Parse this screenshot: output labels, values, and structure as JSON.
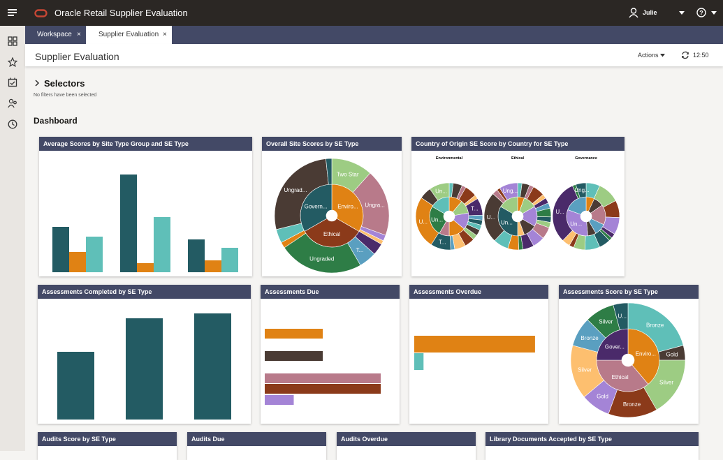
{
  "app": {
    "title": "Oracle Retail Supplier Evaluation",
    "user": "Julie",
    "brand_color": "#c74634"
  },
  "tabs": [
    {
      "label": "Workspace",
      "active": false
    },
    {
      "label": "Supplier Evaluation",
      "active": true
    }
  ],
  "page": {
    "title": "Supplier Evaluation",
    "actions_label": "Actions",
    "refresh_time": "12:50"
  },
  "selectors": {
    "title": "Selectors",
    "status": "No filters have been selected"
  },
  "dashboard": {
    "title": "Dashboard"
  },
  "rail_icons": [
    "dashboard-icon",
    "star-icon",
    "tasks-icon",
    "users-icon",
    "history-icon"
  ],
  "colors": {
    "header": "#434966",
    "teal_dark": "#235b63",
    "orange": "#e08214",
    "teal_light": "#5fbfb8"
  },
  "cards": {
    "c1": "Average Scores by Site Type Group and SE Type",
    "c2": "Overall Site Scores by SE Type",
    "c3": "Country of Origin SE Score by Country for SE Type",
    "c4": "Assessments Completed by SE Type",
    "c5": "Assessments Due",
    "c6": "Assessments Overdue",
    "c7": "Assessments Score by SE Type",
    "c8": "Audits Score by SE Type",
    "c9": "Audits Due",
    "c10": "Audits Overdue",
    "c11": "Library Documents Accepted by SE Type"
  },
  "chart_data": [
    {
      "id": "avg_scores",
      "type": "bar",
      "groups": 3,
      "series": [
        {
          "color": "#235b63",
          "values": [
            65,
            140,
            47
          ]
        },
        {
          "color": "#e08214",
          "values": [
            29,
            13,
            17
          ]
        },
        {
          "color": "#5fbfb8",
          "values": [
            51,
            79,
            35
          ]
        }
      ]
    },
    {
      "id": "overall_site",
      "type": "sunburst",
      "inner": [
        {
          "label": "Enviro...",
          "value": 120,
          "color": "#e08214"
        },
        {
          "label": "Ethical",
          "value": 120,
          "color": "#8b3a1a"
        },
        {
          "label": "Govern...",
          "value": 120,
          "color": "#235b63"
        }
      ],
      "outer": [
        {
          "label": "Two Star",
          "value": 42,
          "color": "#9dcc83"
        },
        {
          "label": "Ungra...",
          "value": 68,
          "color": "#b87a8a"
        },
        {
          "label": "",
          "value": 6,
          "color": "#a484d6"
        },
        {
          "label": "",
          "value": 4,
          "color": "#fdbf6f"
        },
        {
          "label": "",
          "value": 12,
          "color": "#4a2a6a"
        },
        {
          "label": "T...",
          "value": 18,
          "color": "#5a9fc0"
        },
        {
          "label": "Ungraded",
          "value": 86,
          "color": "#2e7d46"
        },
        {
          "label": "",
          "value": 6,
          "color": "#e08214"
        },
        {
          "label": "",
          "value": 14,
          "color": "#5fbfb8"
        },
        {
          "label": "Ungrad...",
          "value": 98,
          "color": "#4a3b34"
        },
        {
          "label": "",
          "value": 6,
          "color": "#235b63"
        }
      ]
    },
    {
      "id": "country_env",
      "type": "sunburst",
      "title": "Environmental",
      "inner": [
        {
          "label": "",
          "value": 40,
          "color": "#e08214"
        },
        {
          "label": "",
          "value": 40,
          "color": "#9dcc83"
        },
        {
          "label": "",
          "value": 50,
          "color": "#a484d6"
        },
        {
          "label": "",
          "value": 50,
          "color": "#e08214"
        },
        {
          "label": "",
          "value": 30,
          "color": "#b87a8a"
        },
        {
          "label": "Un...",
          "value": 90,
          "color": "#2e7d46"
        },
        {
          "label": "",
          "value": 60,
          "color": "#5fbfb8"
        }
      ],
      "outer": [
        {
          "label": "",
          "value": 8,
          "color": "#5fbfb8"
        },
        {
          "label": "",
          "value": 18,
          "color": "#4a3b34"
        },
        {
          "label": "",
          "value": 8,
          "color": "#b87a8a"
        },
        {
          "label": "",
          "value": 24,
          "color": "#8b3a1a"
        },
        {
          "label": "",
          "value": 8,
          "color": "#fdbf6f"
        },
        {
          "label": "T...",
          "value": 34,
          "color": "#4a2a6a"
        },
        {
          "label": "",
          "value": 10,
          "color": "#5a9fc0"
        },
        {
          "label": "",
          "value": 10,
          "color": "#235b63"
        },
        {
          "label": "",
          "value": 10,
          "color": "#5fbfb8"
        },
        {
          "label": "",
          "value": 12,
          "color": "#4a3b34"
        },
        {
          "label": "",
          "value": 10,
          "color": "#9dcc83"
        },
        {
          "label": "",
          "value": 20,
          "color": "#8b3a1a"
        },
        {
          "label": "",
          "value": 22,
          "color": "#fdbf6f"
        },
        {
          "label": "",
          "value": 8,
          "color": "#5a9fc0"
        },
        {
          "label": "T...",
          "value": 40,
          "color": "#235b63"
        },
        {
          "label": "U...",
          "value": 104,
          "color": "#e08214"
        },
        {
          "label": "",
          "value": 24,
          "color": "#4a3b34"
        },
        {
          "label": "Un...",
          "value": 40,
          "color": "#9dcc83"
        }
      ]
    },
    {
      "id": "country_eth",
      "type": "sunburst",
      "title": "Ethical",
      "inner": [
        {
          "label": "",
          "value": 20,
          "color": "#e08214"
        },
        {
          "label": "",
          "value": 40,
          "color": "#9dcc83"
        },
        {
          "label": "",
          "value": 60,
          "color": "#a484d6"
        },
        {
          "label": "",
          "value": 40,
          "color": "#4a3b34"
        },
        {
          "label": "",
          "value": 20,
          "color": "#fdbf6f"
        },
        {
          "label": "Un...",
          "value": 120,
          "color": "#235b63"
        },
        {
          "label": "",
          "value": 60,
          "color": "#9dcc83"
        }
      ],
      "outer": [
        {
          "label": "",
          "value": 8,
          "color": "#5fbfb8"
        },
        {
          "label": "",
          "value": 14,
          "color": "#4a3b34"
        },
        {
          "label": "",
          "value": 8,
          "color": "#b87a8a"
        },
        {
          "label": "",
          "value": 22,
          "color": "#8b3a1a"
        },
        {
          "label": "",
          "value": 8,
          "color": "#fdbf6f"
        },
        {
          "label": "",
          "value": 10,
          "color": "#4a2a6a"
        },
        {
          "label": "",
          "value": 10,
          "color": "#5a9fc0"
        },
        {
          "label": "",
          "value": 16,
          "color": "#2e7d46"
        },
        {
          "label": "",
          "value": 10,
          "color": "#235b63"
        },
        {
          "label": "",
          "value": 10,
          "color": "#9dcc83"
        },
        {
          "label": "",
          "value": 22,
          "color": "#b87a8a"
        },
        {
          "label": "",
          "value": 22,
          "color": "#a484d6"
        },
        {
          "label": "",
          "value": 20,
          "color": "#4a2a6a"
        },
        {
          "label": "",
          "value": 8,
          "color": "#2e7d46"
        },
        {
          "label": "",
          "value": 20,
          "color": "#e08214"
        },
        {
          "label": "",
          "value": 28,
          "color": "#5fbfb8"
        },
        {
          "label": "U...",
          "value": 94,
          "color": "#4a3b34"
        },
        {
          "label": "",
          "value": 10,
          "color": "#b87a8a"
        },
        {
          "label": "",
          "value": 6,
          "color": "#8b3a1a"
        },
        {
          "label": "Ung...",
          "value": 34,
          "color": "#a484d6"
        }
      ]
    },
    {
      "id": "country_gov",
      "type": "sunburst",
      "title": "Governance",
      "inner": [
        {
          "label": "",
          "value": 25,
          "color": "#e08214"
        },
        {
          "label": "",
          "value": 30,
          "color": "#4a3b34"
        },
        {
          "label": "",
          "value": 60,
          "color": "#b87a8a"
        },
        {
          "label": "",
          "value": 35,
          "color": "#5a9fc0"
        },
        {
          "label": "",
          "value": 25,
          "color": "#4a3b34"
        },
        {
          "label": "Un...",
          "value": 115,
          "color": "#a484d6"
        },
        {
          "label": "",
          "value": 70,
          "color": "#5a9fc0"
        }
      ],
      "outer": [
        {
          "label": "",
          "value": 24,
          "color": "#5fbfb8"
        },
        {
          "label": "",
          "value": 38,
          "color": "#9dcc83"
        },
        {
          "label": "",
          "value": 30,
          "color": "#8b3a1a"
        },
        {
          "label": "",
          "value": 30,
          "color": "#a484d6"
        },
        {
          "label": "",
          "value": 8,
          "color": "#4a2a6a"
        },
        {
          "label": "",
          "value": 6,
          "color": "#2e7d46"
        },
        {
          "label": "",
          "value": 20,
          "color": "#235b63"
        },
        {
          "label": "",
          "value": 26,
          "color": "#5fbfb8"
        },
        {
          "label": "",
          "value": 20,
          "color": "#9dcc83"
        },
        {
          "label": "",
          "value": 8,
          "color": "#8b3a1a"
        },
        {
          "label": "",
          "value": 14,
          "color": "#fdbf6f"
        },
        {
          "label": "U...",
          "value": 112,
          "color": "#4a2a6a"
        },
        {
          "label": "",
          "value": 6,
          "color": "#2e7d46"
        },
        {
          "label": "Ung...",
          "value": 18,
          "color": "#235b63"
        }
      ]
    },
    {
      "id": "assess_completed",
      "type": "bar",
      "series": [
        {
          "color": "#235b63",
          "values": [
            97,
            145,
            152
          ]
        }
      ]
    },
    {
      "id": "assess_due",
      "type": "hbar",
      "values": [
        2,
        2,
        4,
        4,
        1
      ],
      "colors": [
        "#e08214",
        "#4a3b34",
        "#b87a8a",
        "#8b3a1a",
        "#a484d6"
      ]
    },
    {
      "id": "assess_overdue",
      "type": "hbar",
      "values": [
        13,
        1
      ],
      "colors": [
        "#e08214",
        "#5fbfb8"
      ]
    },
    {
      "id": "assess_score",
      "type": "sunburst",
      "inner": [
        {
          "label": "Enviro...",
          "value": 140,
          "color": "#e08214"
        },
        {
          "label": "Ethical",
          "value": 130,
          "color": "#b87a8a"
        },
        {
          "label": "Gover...",
          "value": 90,
          "color": "#4a2a6a"
        }
      ],
      "outer": [
        {
          "label": "Bronze",
          "value": 75,
          "color": "#5fbfb8"
        },
        {
          "label": "Gold",
          "value": 15,
          "color": "#4a3b34"
        },
        {
          "label": "Silver",
          "value": 60,
          "color": "#9dcc83"
        },
        {
          "label": "Bronze",
          "value": 50,
          "color": "#8b3a1a"
        },
        {
          "label": "Gold",
          "value": 30,
          "color": "#a484d6"
        },
        {
          "label": "Silver",
          "value": 55,
          "color": "#fdbf6f"
        },
        {
          "label": "Bronze",
          "value": 30,
          "color": "#5a9fc0"
        },
        {
          "label": "Silver",
          "value": 30,
          "color": "#2e7d46"
        },
        {
          "label": "U...",
          "value": 15,
          "color": "#235b63"
        }
      ]
    }
  ]
}
